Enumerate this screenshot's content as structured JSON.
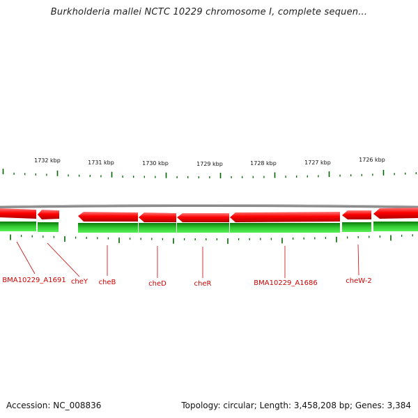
{
  "title": "Burkholderia mallei NCTC 10229 chromosome I, complete sequen...",
  "accession": "Accession: NC_008836",
  "summary": "Topology: circular; Length: 3,458,208 bp; Genes: 3,384",
  "colors": {
    "backbone": "#8a8a8a",
    "cds": "#ff0000",
    "gene": "#22bb22",
    "tick": "#006600",
    "label": "#cc0000"
  },
  "kbp_labels": [
    "1732 kbp",
    "1731 kbp",
    "1730 kbp",
    "1729 kbp",
    "1728 kbp",
    "1727 kbp",
    "1726 kbp"
  ],
  "gene_labels": [
    "BMA10229_A1691",
    "cheY",
    "cheB",
    "cheD",
    "cheR",
    "BMA10229_A1686",
    "cheW-2"
  ]
}
